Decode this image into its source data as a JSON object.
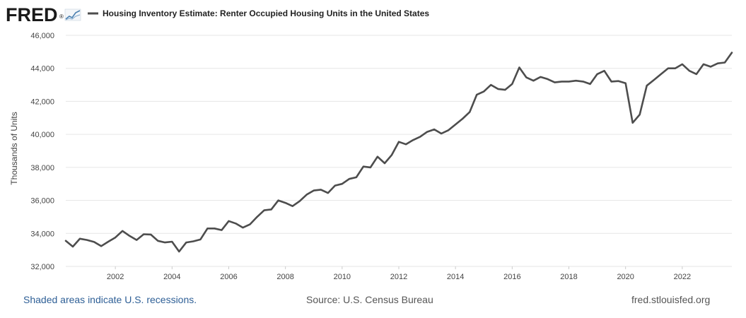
{
  "logo": {
    "text": "FRED",
    "registered_mark": "®"
  },
  "colors": {
    "line": "#4d4d4d",
    "grid": "#e6e6e6",
    "axis_text": "#444444",
    "title_text": "#222222",
    "link": "#2e5f96",
    "footer_text": "#555555",
    "logo_text": "#1a1a1a"
  },
  "footer": {
    "recession_note": "Shaded areas indicate U.S. recessions.",
    "source": "Source: U.S. Census Bureau",
    "site": "fred.stlouisfed.org"
  },
  "chart_data": {
    "type": "line",
    "title": "Housing Inventory Estimate: Renter Occupied Housing Units in the United States",
    "xlabel": "",
    "ylabel": "Thousands of Units",
    "ylim": [
      32000,
      46000
    ],
    "xlim": [
      2000.25,
      2023.75
    ],
    "yticks": [
      32000,
      34000,
      36000,
      38000,
      40000,
      42000,
      44000,
      46000
    ],
    "ytick_labels": [
      "32,000",
      "34,000",
      "36,000",
      "38,000",
      "40,000",
      "42,000",
      "44,000",
      "46,000"
    ],
    "xticks": [
      2002,
      2004,
      2006,
      2008,
      2010,
      2012,
      2014,
      2016,
      2018,
      2020,
      2022
    ],
    "xtick_labels": [
      "2002",
      "2004",
      "2006",
      "2008",
      "2010",
      "2012",
      "2014",
      "2016",
      "2018",
      "2020",
      "2022"
    ],
    "grid": true,
    "legend": "top-left",
    "series": [
      {
        "name": "Housing Inventory Estimate: Renter Occupied Housing Units in the United States",
        "x": [
          2000.25,
          2000.5,
          2000.75,
          2001,
          2001.25,
          2001.5,
          2001.75,
          2002,
          2002.25,
          2002.5,
          2002.75,
          2003,
          2003.25,
          2003.5,
          2003.75,
          2004,
          2004.25,
          2004.5,
          2004.75,
          2005,
          2005.25,
          2005.5,
          2005.75,
          2006,
          2006.25,
          2006.5,
          2006.75,
          2007,
          2007.25,
          2007.5,
          2007.75,
          2008,
          2008.25,
          2008.5,
          2008.75,
          2009,
          2009.25,
          2009.5,
          2009.75,
          2010,
          2010.25,
          2010.5,
          2010.75,
          2011,
          2011.25,
          2011.5,
          2011.75,
          2012,
          2012.25,
          2012.5,
          2012.75,
          2013,
          2013.25,
          2013.5,
          2013.75,
          2014,
          2014.25,
          2014.5,
          2014.75,
          2015,
          2015.25,
          2015.5,
          2015.75,
          2016,
          2016.25,
          2016.5,
          2016.75,
          2017,
          2017.25,
          2017.5,
          2017.75,
          2018,
          2018.25,
          2018.5,
          2018.75,
          2019,
          2019.25,
          2019.5,
          2019.75,
          2020,
          2020.25,
          2020.5,
          2020.75,
          2021,
          2021.25,
          2021.5,
          2021.75,
          2022,
          2022.25,
          2022.5,
          2022.75,
          2023,
          2023.25,
          2023.5,
          2023.75
        ],
        "values": [
          33550,
          33200,
          33680,
          33600,
          33480,
          33230,
          33500,
          33750,
          34150,
          33850,
          33600,
          33950,
          33930,
          33550,
          33450,
          33500,
          32900,
          33450,
          33520,
          33630,
          34300,
          34300,
          34200,
          34750,
          34600,
          34350,
          34550,
          35000,
          35400,
          35450,
          36000,
          35850,
          35650,
          35950,
          36350,
          36600,
          36650,
          36450,
          36900,
          37000,
          37300,
          37400,
          38050,
          38000,
          38650,
          38250,
          38750,
          39550,
          39400,
          39650,
          39850,
          40150,
          40300,
          40050,
          40250,
          40600,
          40950,
          41350,
          42400,
          42600,
          43000,
          42750,
          42700,
          43050,
          44050,
          43450,
          43250,
          43480,
          43350,
          43150,
          43200,
          43200,
          43250,
          43200,
          43050,
          43650,
          43850,
          43200,
          43230,
          43100,
          40700,
          41200,
          42950,
          43300,
          43650,
          44000,
          44000,
          44250,
          43850,
          43650,
          44250,
          44100,
          44300,
          44350,
          44950
        ]
      }
    ]
  }
}
